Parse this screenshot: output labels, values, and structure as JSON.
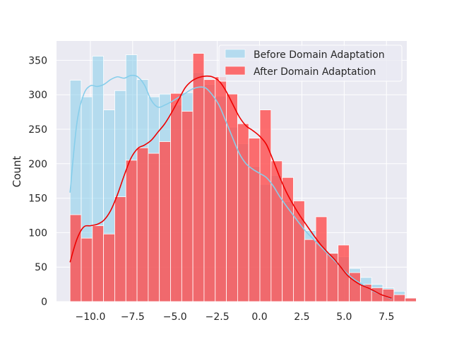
{
  "chart_data": {
    "type": "bar",
    "style": "histogram-with-kde",
    "title": "",
    "xlabel": "",
    "ylabel": "Count",
    "xlim": [
      -12.0,
      8.7
    ],
    "ylim": [
      0,
      378
    ],
    "x_ticks": [
      -10.0,
      -7.5,
      -5.0,
      -2.5,
      0.0,
      2.5,
      5.0,
      7.5
    ],
    "x_tick_labels": [
      "−10.0",
      "−7.5",
      "−5.0",
      "−2.5",
      "0.0",
      "2.5",
      "5.0",
      "7.5"
    ],
    "y_ticks": [
      0,
      50,
      100,
      150,
      200,
      250,
      300,
      350
    ],
    "y_tick_labels": [
      "0",
      "50",
      "100",
      "150",
      "200",
      "250",
      "300",
      "350"
    ],
    "grid": true,
    "background_color": "#eaeaf2",
    "legend_position": "top-right",
    "bin_start": -11.2,
    "bin_width": 0.66,
    "series": [
      {
        "name": "Before Domain Adaptation",
        "color": "#87ceeb",
        "line_color": "#87ceeb",
        "bin_counts": [
          321,
          297,
          356,
          278,
          306,
          358,
          322,
          297,
          301,
          285,
          303,
          332,
          315,
          298,
          253,
          229,
          196,
          170,
          183,
          145,
          120,
          103,
          90,
          70,
          65,
          48,
          35,
          25,
          20,
          15,
          5
        ],
        "kde_points": [
          [
            -11.2,
            158
          ],
          [
            -10.8,
            258
          ],
          [
            -10.4,
            300
          ],
          [
            -10.0,
            313
          ],
          [
            -9.6,
            312
          ],
          [
            -9.2,
            315
          ],
          [
            -8.8,
            322
          ],
          [
            -8.4,
            326
          ],
          [
            -8.0,
            324
          ],
          [
            -7.6,
            328
          ],
          [
            -7.2,
            326
          ],
          [
            -6.8,
            314
          ],
          [
            -6.4,
            292
          ],
          [
            -6.0,
            282
          ],
          [
            -5.6,
            285
          ],
          [
            -5.2,
            290
          ],
          [
            -4.8,
            296
          ],
          [
            -4.4,
            302
          ],
          [
            -4.0,
            308
          ],
          [
            -3.6,
            311
          ],
          [
            -3.2,
            310
          ],
          [
            -2.8,
            300
          ],
          [
            -2.4,
            285
          ],
          [
            -2.0,
            262
          ],
          [
            -1.6,
            238
          ],
          [
            -1.2,
            215
          ],
          [
            -0.8,
            200
          ],
          [
            -0.4,
            192
          ],
          [
            0.0,
            186
          ],
          [
            0.4,
            180
          ],
          [
            0.8,
            168
          ],
          [
            1.2,
            152
          ],
          [
            1.6,
            138
          ],
          [
            2.0,
            125
          ],
          [
            2.4,
            112
          ],
          [
            2.8,
            100
          ],
          [
            3.2,
            90
          ],
          [
            3.6,
            80
          ],
          [
            4.0,
            70
          ],
          [
            4.4,
            60
          ],
          [
            4.8,
            50
          ],
          [
            5.2,
            40
          ],
          [
            5.6,
            32
          ],
          [
            6.0,
            26
          ],
          [
            6.4,
            20
          ],
          [
            6.8,
            14
          ],
          [
            7.2,
            10
          ],
          [
            7.8,
            4
          ]
        ]
      },
      {
        "name": "After Domain Adaptation",
        "color": "#ff4c4c",
        "line_color": "#ee0000",
        "bin_counts": [
          126,
          92,
          110,
          98,
          152,
          205,
          223,
          215,
          232,
          302,
          276,
          360,
          322,
          326,
          301,
          258,
          237,
          278,
          204,
          180,
          146,
          90,
          123,
          70,
          82,
          42,
          25,
          20,
          18,
          10,
          5
        ],
        "kde_points": [
          [
            -11.2,
            57
          ],
          [
            -10.8,
            90
          ],
          [
            -10.4,
            108
          ],
          [
            -10.0,
            110
          ],
          [
            -9.6,
            112
          ],
          [
            -9.2,
            118
          ],
          [
            -8.8,
            132
          ],
          [
            -8.4,
            155
          ],
          [
            -8.0,
            183
          ],
          [
            -7.6,
            208
          ],
          [
            -7.2,
            222
          ],
          [
            -6.8,
            227
          ],
          [
            -6.4,
            234
          ],
          [
            -6.0,
            246
          ],
          [
            -5.6,
            258
          ],
          [
            -5.2,
            274
          ],
          [
            -4.8,
            292
          ],
          [
            -4.4,
            310
          ],
          [
            -4.0,
            320
          ],
          [
            -3.6,
            325
          ],
          [
            -3.2,
            327
          ],
          [
            -2.8,
            326
          ],
          [
            -2.4,
            320
          ],
          [
            -2.0,
            306
          ],
          [
            -1.6,
            287
          ],
          [
            -1.2,
            268
          ],
          [
            -0.8,
            255
          ],
          [
            -0.4,
            248
          ],
          [
            0.0,
            240
          ],
          [
            0.4,
            228
          ],
          [
            0.8,
            205
          ],
          [
            1.2,
            180
          ],
          [
            1.6,
            158
          ],
          [
            2.0,
            140
          ],
          [
            2.4,
            124
          ],
          [
            2.8,
            110
          ],
          [
            3.2,
            96
          ],
          [
            3.6,
            83
          ],
          [
            4.0,
            72
          ],
          [
            4.4,
            62
          ],
          [
            4.8,
            50
          ],
          [
            5.2,
            38
          ],
          [
            5.6,
            30
          ],
          [
            6.0,
            24
          ],
          [
            6.4,
            20
          ],
          [
            6.8,
            15
          ],
          [
            7.2,
            10
          ],
          [
            7.8,
            5
          ]
        ]
      }
    ]
  }
}
